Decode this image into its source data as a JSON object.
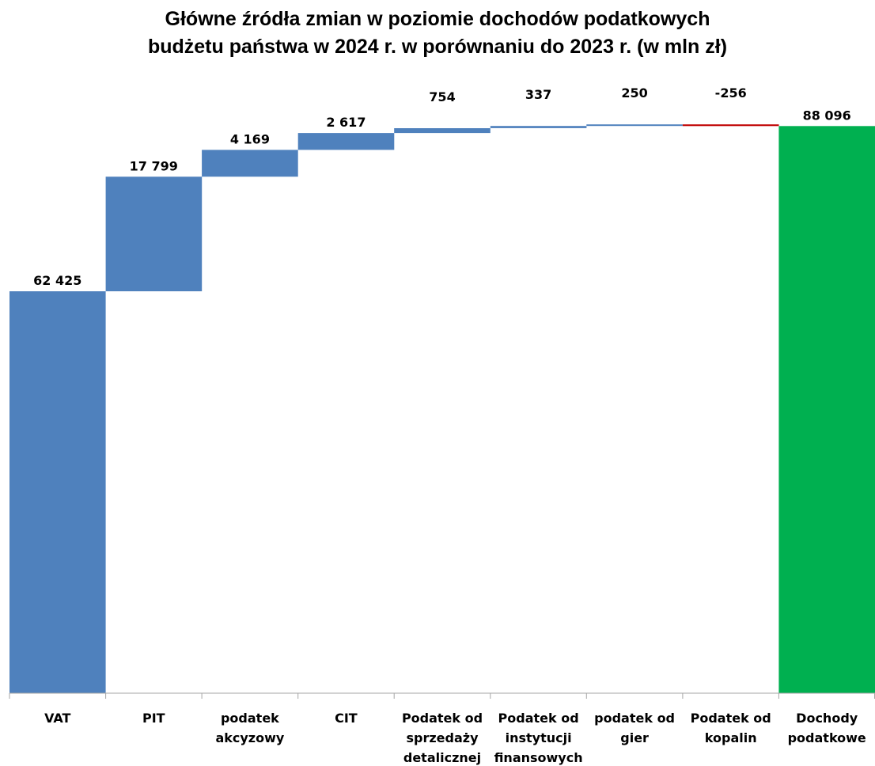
{
  "chart_data": {
    "type": "bar",
    "subtype": "waterfall",
    "title_lines": [
      "Główne źródła zmian w poziomie dochodów podatkowych",
      "budżetu państwa w 2024 r. w porównaniu do 2023 r. (w mln zł)"
    ],
    "xlabel": "",
    "ylabel": "",
    "categories": [
      [
        "VAT"
      ],
      [
        "PIT"
      ],
      [
        "podatek",
        "akcyzowy"
      ],
      [
        "CIT"
      ],
      [
        "Podatek od",
        "sprzedaży",
        "detalicznej"
      ],
      [
        "Podatek od",
        "instytucji",
        "finansowych"
      ],
      [
        "podatek od",
        "gier"
      ],
      [
        "Podatek od",
        "kopalin"
      ],
      [
        "Dochody",
        "podatkowe"
      ]
    ],
    "values": [
      62425,
      17799,
      4169,
      2617,
      754,
      337,
      250,
      -256,
      88096
    ],
    "value_labels": [
      "62 425",
      "17 799",
      "4 169",
      "2 617",
      "754",
      "337",
      "250",
      "-256",
      "88 096"
    ],
    "total_index": 8,
    "ylim": [
      0,
      88200
    ],
    "grid": false,
    "legend": "none",
    "colors": {
      "increase": "#4F81BD",
      "decrease": "#C00000",
      "total": "#00B050",
      "axis": "#A6A6A6"
    }
  }
}
